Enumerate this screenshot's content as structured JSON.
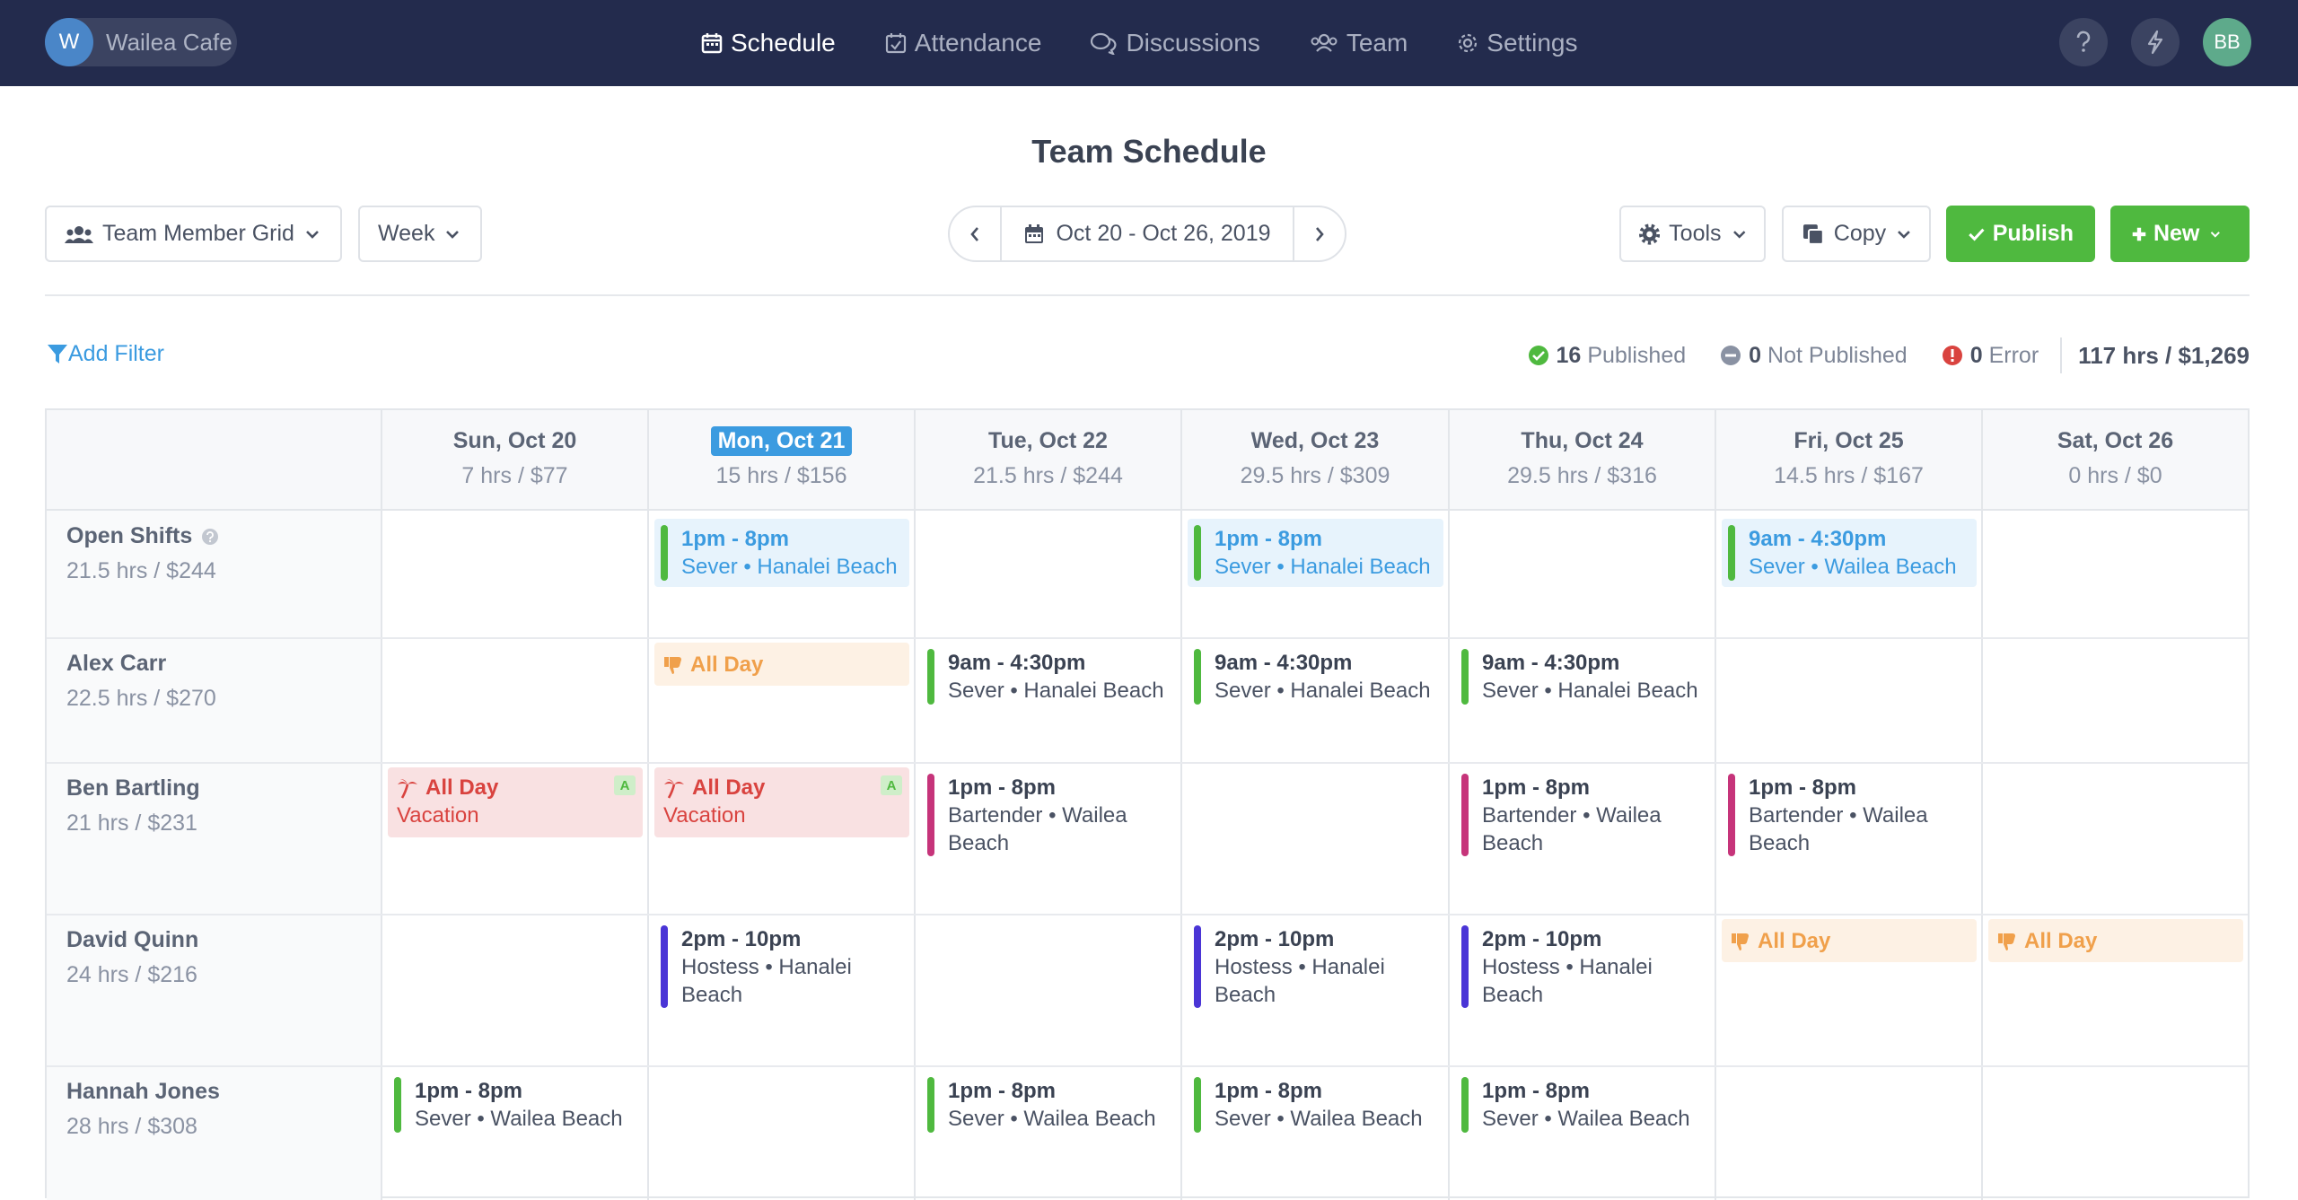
{
  "org": {
    "initial": "W",
    "name": "Wailea Cafe"
  },
  "nav": {
    "schedule": "Schedule",
    "attendance": "Attendance",
    "discussions": "Discussions",
    "team": "Team",
    "settings": "Settings"
  },
  "user": {
    "initials": "BB"
  },
  "page_title": "Team Schedule",
  "toolbar": {
    "view": "Team Member Grid",
    "range_type": "Week",
    "date_range": "Oct 20 - Oct 26, 2019",
    "tools": "Tools",
    "copy": "Copy",
    "publish": "Publish",
    "new": "New"
  },
  "filter": {
    "add_filter": "Add Filter"
  },
  "stats": {
    "published_count": "16",
    "published_label": "Published",
    "not_published_count": "0",
    "not_published_label": "Not Published",
    "error_count": "0",
    "error_label": "Error",
    "total": "117 hrs / $1,269"
  },
  "days": [
    {
      "name": "Sun, Oct 20",
      "stats": "7 hrs / $77"
    },
    {
      "name": "Mon, Oct 21",
      "stats": "15 hrs / $156"
    },
    {
      "name": "Tue, Oct 22",
      "stats": "21.5 hrs / $244"
    },
    {
      "name": "Wed, Oct 23",
      "stats": "29.5 hrs / $309"
    },
    {
      "name": "Thu, Oct 24",
      "stats": "29.5 hrs / $316"
    },
    {
      "name": "Fri, Oct 25",
      "stats": "14.5 hrs / $167"
    },
    {
      "name": "Sat, Oct 26",
      "stats": "0 hrs / $0"
    }
  ],
  "employees": [
    {
      "name": "Open Shifts",
      "stats": "21.5 hrs / $244"
    },
    {
      "name": "Alex Carr",
      "stats": "22.5 hrs / $270"
    },
    {
      "name": "Ben Bartling",
      "stats": "21 hrs / $231"
    },
    {
      "name": "David Quinn",
      "stats": "24 hrs / $216"
    },
    {
      "name": "Hannah Jones",
      "stats": "28 hrs / $308"
    }
  ],
  "shifts": {
    "open_mon": {
      "time": "1pm - 8pm",
      "detail": "Sever • Hanalei Beach"
    },
    "open_wed": {
      "time": "1pm - 8pm",
      "detail": "Sever • Hanalei Beach"
    },
    "open_fri": {
      "time": "9am - 4:30pm",
      "detail": "Sever • Wailea Beach"
    },
    "alex_mon": {
      "label": "All Day"
    },
    "alex_tue": {
      "time": "9am - 4:30pm",
      "detail": "Sever • Hanalei Beach"
    },
    "alex_wed": {
      "time": "9am - 4:30pm",
      "detail": "Sever • Hanalei Beach"
    },
    "alex_thu": {
      "time": "9am - 4:30pm",
      "detail": "Sever • Hanalei Beach"
    },
    "ben_sun": {
      "time": "All Day",
      "detail": "Vacation",
      "badge": "A"
    },
    "ben_mon": {
      "time": "All Day",
      "detail": "Vacation",
      "badge": "A"
    },
    "ben_tue": {
      "time": "1pm - 8pm",
      "detail": "Bartender • Wailea Beach"
    },
    "ben_thu": {
      "time": "1pm - 8pm",
      "detail": "Bartender • Wailea Beach"
    },
    "ben_fri": {
      "time": "1pm - 8pm",
      "detail": "Bartender • Wailea Beach"
    },
    "david_mon": {
      "time": "2pm - 10pm",
      "detail": "Hostess • Hanalei Beach"
    },
    "david_wed": {
      "time": "2pm - 10pm",
      "detail": "Hostess • Hanalei Beach"
    },
    "david_thu": {
      "time": "2pm - 10pm",
      "detail": "Hostess • Hanalei Beach"
    },
    "david_fri": {
      "label": "All Day"
    },
    "david_sat": {
      "label": "All Day"
    },
    "hannah_sun": {
      "time": "1pm - 8pm",
      "detail": "Sever • Wailea Beach"
    },
    "hannah_tue": {
      "time": "1pm - 8pm",
      "detail": "Sever • Wailea Beach"
    },
    "hannah_wed": {
      "time": "1pm - 8pm",
      "detail": "Sever • Wailea Beach"
    },
    "hannah_thu": {
      "time": "1pm - 8pm",
      "detail": "Sever • Wailea Beach"
    }
  },
  "colors": {
    "nav_bg": "#232b4d",
    "accent_blue": "#3b9be0",
    "green": "#4fb93f",
    "server_bar": "#4fb93f",
    "bartender_bar": "#c6347a",
    "hostess_bar": "#4a35d6",
    "unavailable": "#f0a04b",
    "vacation": "#d9433f"
  }
}
